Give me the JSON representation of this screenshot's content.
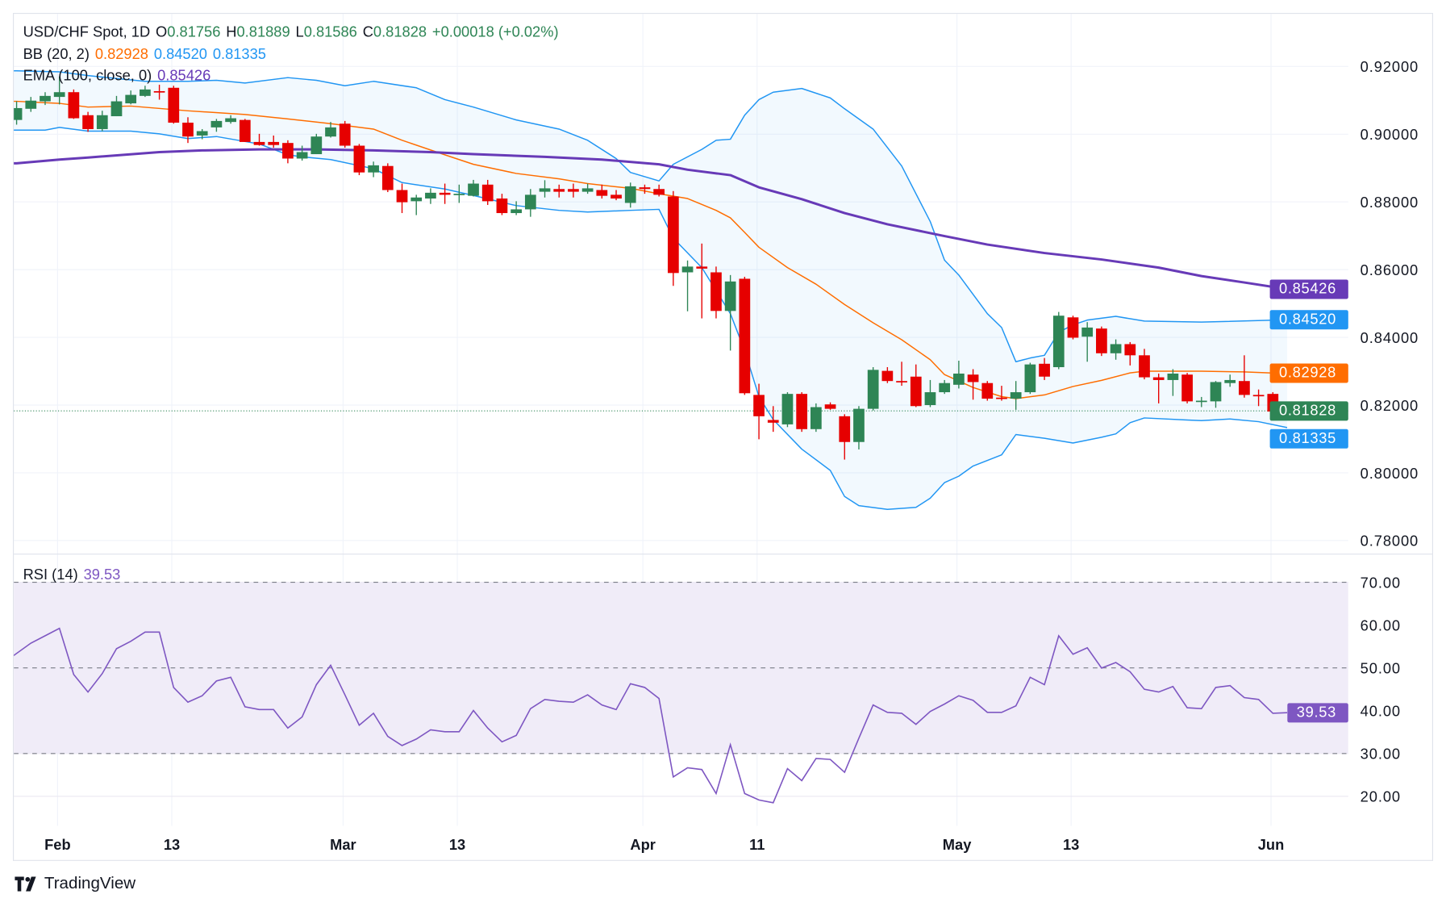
{
  "header": {
    "symbol": "USD/CHF Spot, 1D",
    "open_label": "O",
    "open": "0.81756",
    "high_label": "H",
    "high": "0.81889",
    "low_label": "L",
    "low": "0.81586",
    "close_label": "C",
    "close": "0.81828",
    "change": "+0.00018 (+0.02%)"
  },
  "bb_legend": {
    "label": "BB (20, 2)",
    "basis": "0.82928",
    "upper": "0.84520",
    "lower": "0.81335"
  },
  "ema_legend": {
    "label": "EMA (100, close, 0)",
    "value": "0.85426"
  },
  "rsi_legend": {
    "label": "RSI (14)",
    "value": "39.53"
  },
  "badges": {
    "ema": "0.85426",
    "bb_upper": "0.84520",
    "bb_basis": "0.82928",
    "last": "0.81828",
    "bb_lower": "0.81335",
    "rsi": "39.53"
  },
  "colors": {
    "up": "#2e8555",
    "down": "#e60000",
    "bb_band": "#2196f3",
    "bb_basis": "#ff6d00",
    "ema": "#673ab7",
    "rsi": "#7e57c2",
    "rsi_fill": "#f0ecf8"
  },
  "brand": {
    "name": "TradingView"
  },
  "chart_data": {
    "type": "candlestick",
    "price_ticks": [
      "0.78000",
      "0.80000",
      "0.82000",
      "0.84000",
      "0.86000",
      "0.88000",
      "0.90000",
      "0.92000"
    ],
    "price_ylim": [
      0.774,
      0.935
    ],
    "rsi_ticks": [
      "20.00",
      "30.00",
      "40.00",
      "50.00",
      "60.00",
      "70.00"
    ],
    "rsi_bands": [
      30,
      50,
      70
    ],
    "rsi_ylim": [
      14,
      76
    ],
    "x_ticks": [
      {
        "label": "Feb",
        "bar": 3
      },
      {
        "label": "13",
        "bar": 11
      },
      {
        "label": "Mar",
        "bar": 23
      },
      {
        "label": "13",
        "bar": 31
      },
      {
        "label": "Apr",
        "bar": 44
      },
      {
        "label": "11",
        "bar": 52
      },
      {
        "label": "May",
        "bar": 66
      },
      {
        "label": "13",
        "bar": 74
      },
      {
        "label": "Jun",
        "bar": 88
      }
    ],
    "ohlc": [
      [
        0.9042,
        0.9097,
        0.9028,
        0.9077
      ],
      [
        0.9075,
        0.911,
        0.9066,
        0.9099
      ],
      [
        0.9097,
        0.9124,
        0.9086,
        0.9113
      ],
      [
        0.911,
        0.917,
        0.9088,
        0.9124
      ],
      [
        0.9124,
        0.9132,
        0.9045,
        0.9047
      ],
      [
        0.9056,
        0.9066,
        0.9007,
        0.9015
      ],
      [
        0.9015,
        0.9069,
        0.9009,
        0.9056
      ],
      [
        0.9053,
        0.9113,
        0.9053,
        0.9097
      ],
      [
        0.9091,
        0.9129,
        0.9088,
        0.9116
      ],
      [
        0.9113,
        0.9143,
        0.911,
        0.9132
      ],
      [
        0.9127,
        0.9146,
        0.9102,
        0.9124
      ],
      [
        0.9137,
        0.9143,
        0.9031,
        0.9034
      ],
      [
        0.9034,
        0.905,
        0.8974,
        0.8993
      ],
      [
        0.8996,
        0.9015,
        0.8985,
        0.9009
      ],
      [
        0.902,
        0.9045,
        0.9007,
        0.9039
      ],
      [
        0.9036,
        0.9056,
        0.9031,
        0.9047
      ],
      [
        0.9042,
        0.9045,
        0.8977,
        0.8977
      ],
      [
        0.8977,
        0.9001,
        0.8966,
        0.8968
      ],
      [
        0.8977,
        0.8996,
        0.896,
        0.8968
      ],
      [
        0.8974,
        0.8982,
        0.8914,
        0.8928
      ],
      [
        0.8928,
        0.8966,
        0.8922,
        0.8947
      ],
      [
        0.8941,
        0.9001,
        0.8941,
        0.8993
      ],
      [
        0.8993,
        0.9036,
        0.899,
        0.902
      ],
      [
        0.9031,
        0.9039,
        0.896,
        0.8966
      ],
      [
        0.8966,
        0.8971,
        0.8879,
        0.8887
      ],
      [
        0.8887,
        0.8919,
        0.8873,
        0.8908
      ],
      [
        0.8906,
        0.8914,
        0.8829,
        0.8835
      ],
      [
        0.8835,
        0.8854,
        0.8767,
        0.8799
      ],
      [
        0.8802,
        0.8821,
        0.8761,
        0.8813
      ],
      [
        0.881,
        0.884,
        0.8794,
        0.8827
      ],
      [
        0.8827,
        0.8854,
        0.8794,
        0.8821
      ],
      [
        0.8821,
        0.8851,
        0.8797,
        0.8824
      ],
      [
        0.8818,
        0.8865,
        0.8816,
        0.8854
      ],
      [
        0.8851,
        0.8865,
        0.8791,
        0.8802
      ],
      [
        0.881,
        0.8824,
        0.8761,
        0.8767
      ],
      [
        0.8767,
        0.8802,
        0.8761,
        0.8778
      ],
      [
        0.8778,
        0.8838,
        0.8756,
        0.8821
      ],
      [
        0.883,
        0.8864,
        0.8813,
        0.884
      ],
      [
        0.8838,
        0.8851,
        0.8813,
        0.883
      ],
      [
        0.8838,
        0.8854,
        0.8813,
        0.883
      ],
      [
        0.883,
        0.8854,
        0.8824,
        0.884
      ],
      [
        0.8835,
        0.8851,
        0.881,
        0.8818
      ],
      [
        0.8821,
        0.8835,
        0.8805,
        0.881
      ],
      [
        0.8797,
        0.8857,
        0.8783,
        0.8846
      ],
      [
        0.8843,
        0.8851,
        0.8824,
        0.8838
      ],
      [
        0.8838,
        0.8851,
        0.8816,
        0.8821
      ],
      [
        0.8816,
        0.8832,
        0.8552,
        0.859
      ],
      [
        0.8592,
        0.8627,
        0.8477,
        0.8609
      ],
      [
        0.8609,
        0.8677,
        0.8456,
        0.8603
      ],
      [
        0.8592,
        0.8609,
        0.8456,
        0.8478
      ],
      [
        0.8478,
        0.8584,
        0.8361,
        0.8565
      ],
      [
        0.8573,
        0.8579,
        0.823,
        0.8235
      ],
      [
        0.823,
        0.8263,
        0.8099,
        0.8167
      ],
      [
        0.8156,
        0.8197,
        0.8121,
        0.8148
      ],
      [
        0.8143,
        0.8238,
        0.8135,
        0.8233
      ],
      [
        0.8233,
        0.8238,
        0.8121,
        0.8129
      ],
      [
        0.8129,
        0.8205,
        0.8121,
        0.8194
      ],
      [
        0.8202,
        0.8208,
        0.8186,
        0.8189
      ],
      [
        0.8167,
        0.8173,
        0.8039,
        0.8091
      ],
      [
        0.8091,
        0.8197,
        0.8069,
        0.8189
      ],
      [
        0.8189,
        0.8312,
        0.8184,
        0.8304
      ],
      [
        0.8301,
        0.8312,
        0.8265,
        0.8271
      ],
      [
        0.8271,
        0.8328,
        0.8257,
        0.8268
      ],
      [
        0.8284,
        0.832,
        0.8194,
        0.8197
      ],
      [
        0.82,
        0.8274,
        0.8194,
        0.8238
      ],
      [
        0.8238,
        0.8274,
        0.8233,
        0.8265
      ],
      [
        0.826,
        0.8331,
        0.8249,
        0.8293
      ],
      [
        0.829,
        0.8306,
        0.8216,
        0.8268
      ],
      [
        0.8265,
        0.8271,
        0.8213,
        0.8219
      ],
      [
        0.8222,
        0.8257,
        0.8213,
        0.8219
      ],
      [
        0.8219,
        0.8271,
        0.8186,
        0.8238
      ],
      [
        0.8238,
        0.8325,
        0.8233,
        0.832
      ],
      [
        0.8322,
        0.8339,
        0.8274,
        0.8284
      ],
      [
        0.8312,
        0.8475,
        0.8306,
        0.8464
      ],
      [
        0.8459,
        0.8464,
        0.8394,
        0.8399
      ],
      [
        0.8402,
        0.8445,
        0.8328,
        0.8429
      ],
      [
        0.8426,
        0.8432,
        0.8345,
        0.8353
      ],
      [
        0.8353,
        0.8394,
        0.8334,
        0.838
      ],
      [
        0.838,
        0.8386,
        0.8317,
        0.8347
      ],
      [
        0.8347,
        0.8366,
        0.8276,
        0.8282
      ],
      [
        0.8282,
        0.8293,
        0.8205,
        0.8274
      ],
      [
        0.8274,
        0.8306,
        0.8227,
        0.8293
      ],
      [
        0.829,
        0.8295,
        0.8205,
        0.8211
      ],
      [
        0.8211,
        0.8224,
        0.8194,
        0.8213
      ],
      [
        0.8211,
        0.8271,
        0.8192,
        0.8268
      ],
      [
        0.8265,
        0.829,
        0.8254,
        0.8274
      ],
      [
        0.8271,
        0.8347,
        0.8222,
        0.823
      ],
      [
        0.823,
        0.8246,
        0.8197,
        0.8227
      ],
      [
        0.8233,
        0.8238,
        0.8156,
        0.8181
      ],
      [
        0.81756,
        0.81889,
        0.81586,
        0.81828
      ]
    ],
    "bb_upper": [
      [
        0,
        0.9187
      ],
      [
        3,
        0.9184
      ],
      [
        5,
        0.9173
      ],
      [
        9,
        0.9156
      ],
      [
        12,
        0.9156
      ],
      [
        14,
        0.9159
      ],
      [
        16,
        0.9151
      ],
      [
        19,
        0.9167
      ],
      [
        21,
        0.9159
      ],
      [
        23,
        0.9143
      ],
      [
        25,
        0.9156
      ],
      [
        28,
        0.9137
      ],
      [
        30,
        0.9102
      ],
      [
        32,
        0.908
      ],
      [
        35,
        0.9042
      ],
      [
        38,
        0.9015
      ],
      [
        40,
        0.8982
      ],
      [
        42,
        0.8928
      ],
      [
        43,
        0.8887
      ],
      [
        45,
        0.8862
      ],
      [
        46,
        0.8911
      ],
      [
        47,
        0.8933
      ],
      [
        48,
        0.8955
      ],
      [
        49,
        0.8982
      ],
      [
        50,
        0.8985
      ],
      [
        51,
        0.9056
      ],
      [
        52,
        0.9102
      ],
      [
        53,
        0.9124
      ],
      [
        55,
        0.9135
      ],
      [
        57,
        0.9107
      ],
      [
        58,
        0.9075
      ],
      [
        60,
        0.9015
      ],
      [
        62,
        0.8906
      ],
      [
        64,
        0.8742
      ],
      [
        65,
        0.8628
      ],
      [
        66,
        0.8584
      ],
      [
        68,
        0.847
      ],
      [
        69,
        0.8429
      ],
      [
        70,
        0.8328
      ],
      [
        71,
        0.8339
      ],
      [
        72,
        0.8347
      ],
      [
        73,
        0.8415
      ],
      [
        74,
        0.8437
      ],
      [
        75,
        0.8451
      ],
      [
        77,
        0.8462
      ],
      [
        79,
        0.8448
      ],
      [
        83,
        0.8445
      ],
      [
        89,
        0.8452
      ]
    ],
    "bb_basis": [
      [
        0,
        0.9097
      ],
      [
        3,
        0.9091
      ],
      [
        5,
        0.908
      ],
      [
        8,
        0.9083
      ],
      [
        12,
        0.9069
      ],
      [
        16,
        0.9058
      ],
      [
        19,
        0.9045
      ],
      [
        22,
        0.9031
      ],
      [
        25,
        0.9015
      ],
      [
        27,
        0.8982
      ],
      [
        30,
        0.8939
      ],
      [
        32,
        0.8911
      ],
      [
        35,
        0.8884
      ],
      [
        38,
        0.8868
      ],
      [
        40,
        0.8854
      ],
      [
        43,
        0.884
      ],
      [
        45,
        0.8824
      ],
      [
        47,
        0.881
      ],
      [
        49,
        0.8775
      ],
      [
        50,
        0.8753
      ],
      [
        51,
        0.871
      ],
      [
        52,
        0.8666
      ],
      [
        54,
        0.8606
      ],
      [
        56,
        0.8557
      ],
      [
        58,
        0.8497
      ],
      [
        60,
        0.8443
      ],
      [
        62,
        0.8393
      ],
      [
        64,
        0.8334
      ],
      [
        65,
        0.829
      ],
      [
        67,
        0.8252
      ],
      [
        69,
        0.8225
      ],
      [
        70,
        0.8219
      ],
      [
        72,
        0.823
      ],
      [
        74,
        0.8255
      ],
      [
        76,
        0.8273
      ],
      [
        78,
        0.8295
      ],
      [
        79,
        0.83
      ],
      [
        83,
        0.83
      ],
      [
        86,
        0.8298
      ],
      [
        89,
        0.82928
      ]
    ],
    "bb_lower": [
      [
        0,
        0.9012
      ],
      [
        2,
        0.9012
      ],
      [
        3,
        0.902
      ],
      [
        5,
        0.9009
      ],
      [
        8,
        0.9009
      ],
      [
        10,
        0.9001
      ],
      [
        12,
        0.8987
      ],
      [
        14,
        0.8993
      ],
      [
        17,
        0.8971
      ],
      [
        19,
        0.8939
      ],
      [
        20,
        0.8933
      ],
      [
        22,
        0.8925
      ],
      [
        25,
        0.8898
      ],
      [
        27,
        0.8857
      ],
      [
        30,
        0.8838
      ],
      [
        32,
        0.8819
      ],
      [
        35,
        0.8789
      ],
      [
        38,
        0.8775
      ],
      [
        40,
        0.877
      ],
      [
        43,
        0.8775
      ],
      [
        45,
        0.8778
      ],
      [
        46,
        0.8693
      ],
      [
        48,
        0.8606
      ],
      [
        50,
        0.847
      ],
      [
        51,
        0.8361
      ],
      [
        52,
        0.8225
      ],
      [
        53,
        0.8157
      ],
      [
        55,
        0.807
      ],
      [
        57,
        0.8007
      ],
      [
        58,
        0.793
      ],
      [
        59,
        0.7903
      ],
      [
        61,
        0.7892
      ],
      [
        63,
        0.7898
      ],
      [
        64,
        0.7925
      ],
      [
        65,
        0.7971
      ],
      [
        66,
        0.799
      ],
      [
        67,
        0.802
      ],
      [
        69,
        0.8053
      ],
      [
        70,
        0.8113
      ],
      [
        72,
        0.8102
      ],
      [
        74,
        0.8088
      ],
      [
        76,
        0.8105
      ],
      [
        77,
        0.8115
      ],
      [
        78,
        0.8148
      ],
      [
        79,
        0.8162
      ],
      [
        82,
        0.8156
      ],
      [
        83,
        0.8154
      ],
      [
        85,
        0.8159
      ],
      [
        87,
        0.8151
      ],
      [
        89,
        0.81335
      ]
    ],
    "ema100": [
      [
        0,
        0.8914
      ],
      [
        3,
        0.8925
      ],
      [
        5,
        0.8931
      ],
      [
        10,
        0.8947
      ],
      [
        13,
        0.8952
      ],
      [
        17,
        0.8955
      ],
      [
        21,
        0.8955
      ],
      [
        25,
        0.8952
      ],
      [
        29,
        0.8947
      ],
      [
        32,
        0.8941
      ],
      [
        37,
        0.8933
      ],
      [
        41,
        0.8925
      ],
      [
        45,
        0.8911
      ],
      [
        47,
        0.8895
      ],
      [
        50,
        0.8879
      ],
      [
        52,
        0.8843
      ],
      [
        55,
        0.8808
      ],
      [
        58,
        0.8767
      ],
      [
        61,
        0.8734
      ],
      [
        65,
        0.8699
      ],
      [
        68,
        0.8674
      ],
      [
        72,
        0.8649
      ],
      [
        76,
        0.863
      ],
      [
        80,
        0.8606
      ],
      [
        83,
        0.8581
      ],
      [
        86,
        0.8562
      ],
      [
        89,
        0.85426
      ]
    ],
    "rsi": [
      52.76,
      55.78,
      57.5,
      59.23,
      48.45,
      44.36,
      48.67,
      54.48,
      56.21,
      58.36,
      58.36,
      45.43,
      41.99,
      43.49,
      46.94,
      47.8,
      40.91,
      40.26,
      40.26,
      35.95,
      38.54,
      46.08,
      50.61,
      43.71,
      36.6,
      39.4,
      34.01,
      31.86,
      33.37,
      35.52,
      35.09,
      35.09,
      40.05,
      35.95,
      32.72,
      34.23,
      40.48,
      42.63,
      42.2,
      41.99,
      43.71,
      41.34,
      40.26,
      46.3,
      45.43,
      42.85,
      24.53,
      26.68,
      26.25,
      20.65,
      32.07,
      20.65,
      19.14,
      18.5,
      26.47,
      23.67,
      28.84,
      28.62,
      25.61,
      33.58,
      41.34,
      39.61,
      39.4,
      36.81,
      39.83,
      41.55,
      43.49,
      42.42,
      39.61,
      39.61,
      41.12,
      47.8,
      46.08,
      57.5,
      53.19,
      54.7,
      49.96,
      51.25,
      49.1,
      45.0,
      44.36,
      45.65,
      40.69,
      40.48,
      45.43,
      45.86,
      43.06,
      42.63,
      39.4,
      39.53
    ],
    "last_price": 0.81828
  }
}
